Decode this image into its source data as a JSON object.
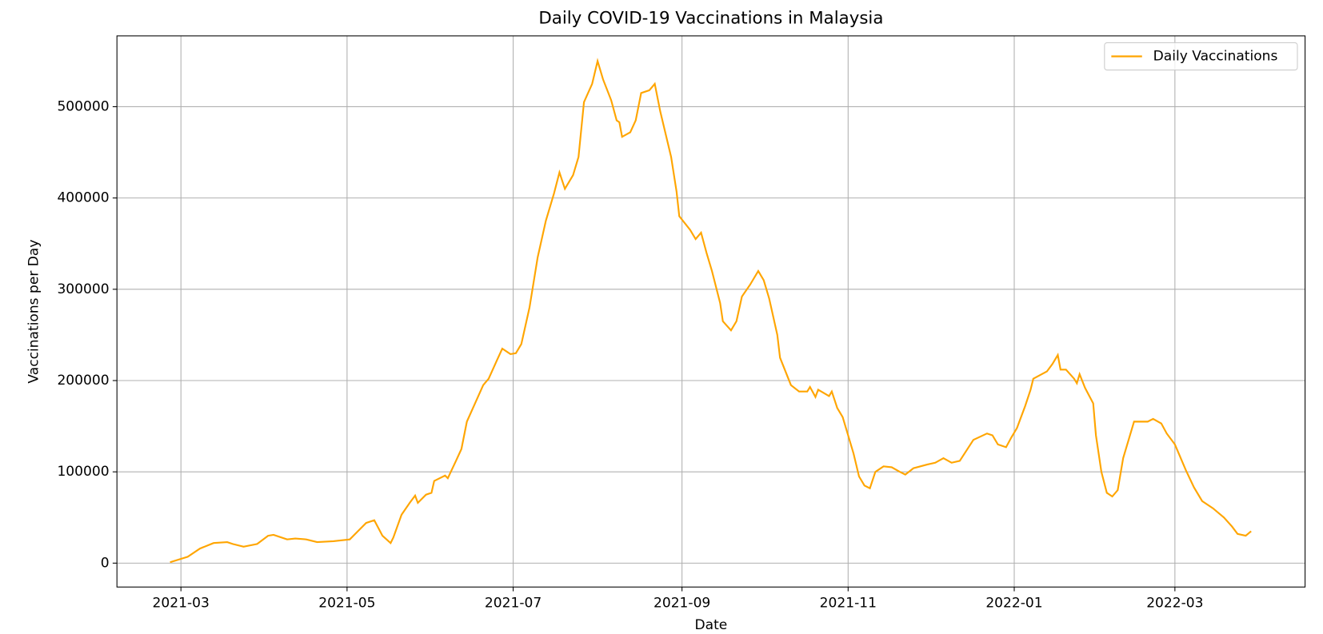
{
  "chart_data": {
    "type": "line",
    "title": "Daily COVID-19 Vaccinations in Malaysia",
    "xlabel": "Date",
    "ylabel": "Vaccinations per Day",
    "x": [
      -4,
      2.5,
      7,
      12,
      17,
      19,
      23,
      28,
      32,
      34,
      39,
      42,
      46,
      50,
      56,
      59,
      62,
      65,
      68,
      71,
      74,
      77,
      78,
      81,
      84,
      86,
      87,
      90,
      92,
      93,
      97,
      98,
      101,
      103,
      105,
      108,
      111,
      113,
      116,
      118,
      121,
      123,
      125,
      128,
      131,
      134,
      137,
      139,
      141,
      144,
      146,
      148,
      151,
      153,
      155,
      158,
      160,
      161,
      162,
      165,
      167,
      169,
      172,
      174,
      176,
      180,
      182,
      183,
      187,
      189,
      191,
      193,
      195,
      198,
      199,
      202,
      204,
      206,
      209,
      212,
      214,
      216,
      219,
      220,
      224,
      227,
      230,
      231,
      233,
      234,
      238,
      239,
      241,
      243,
      245,
      247,
      249,
      251,
      253,
      255,
      258,
      261,
      264,
      266,
      269,
      274,
      277,
      280,
      283,
      286,
      291,
      296,
      298,
      300,
      303,
      305,
      307,
      310,
      312,
      313,
      318,
      320,
      322,
      323,
      325,
      328,
      329,
      330,
      332,
      335,
      336,
      338,
      340,
      342,
      344,
      346,
      348,
      350,
      355,
      357,
      360,
      362,
      365,
      369,
      372,
      375,
      379,
      383,
      386,
      388,
      391,
      393
    ],
    "series": [
      {
        "name": "Daily Vaccinations",
        "color": "#ffa500",
        "values": [
          1000,
          7000,
          16000,
          22000,
          23000,
          21000,
          18000,
          21000,
          30000,
          31000,
          26000,
          27000,
          26000,
          23000,
          24000,
          25000,
          26000,
          35000,
          44000,
          47000,
          30000,
          22000,
          28000,
          53000,
          66000,
          74000,
          66000,
          75000,
          77000,
          90000,
          96000,
          93000,
          112000,
          125000,
          155000,
          175000,
          195000,
          202000,
          222000,
          235000,
          229000,
          230000,
          240000,
          280000,
          335000,
          375000,
          405000,
          428000,
          410000,
          425000,
          445000,
          505000,
          525000,
          550000,
          530000,
          507000,
          485000,
          483000,
          467000,
          472000,
          485000,
          515000,
          518000,
          525000,
          495000,
          445000,
          407000,
          380000,
          365000,
          355000,
          362000,
          340000,
          320000,
          285000,
          265000,
          255000,
          265000,
          292000,
          305000,
          320000,
          310000,
          290000,
          250000,
          225000,
          195000,
          188000,
          188000,
          193000,
          182000,
          190000,
          183000,
          188000,
          170000,
          160000,
          140000,
          120000,
          95000,
          85000,
          82000,
          100000,
          106000,
          105000,
          100000,
          97000,
          104000,
          108000,
          110000,
          115000,
          110000,
          112000,
          135000,
          142000,
          140000,
          130000,
          127000,
          138000,
          148000,
          172000,
          190000,
          202000,
          210000,
          218000,
          228000,
          212000,
          212000,
          202000,
          197000,
          207000,
          192000,
          175000,
          140000,
          100000,
          77000,
          73000,
          80000,
          115000,
          135000,
          155000,
          155000,
          158000,
          153000,
          142000,
          130000,
          102000,
          83000,
          68000,
          60000,
          50000,
          40000,
          32000,
          30000,
          35000
        ]
      }
    ],
    "xlim": [
      -23.5,
      412.8
    ],
    "xticks": [
      {
        "value": 0,
        "label": "2021-03"
      },
      {
        "value": 61,
        "label": "2021-05"
      },
      {
        "value": 122,
        "label": "2021-07"
      },
      {
        "value": 184,
        "label": "2021-09"
      },
      {
        "value": 245,
        "label": "2021-11"
      },
      {
        "value": 306,
        "label": "2022-01"
      },
      {
        "value": 365,
        "label": "2022-03"
      }
    ],
    "ylim": [
      -26170,
      577570
    ],
    "yticks": [
      0,
      100000,
      200000,
      300000,
      400000,
      500000
    ],
    "grid": true,
    "legend": "upper right"
  }
}
